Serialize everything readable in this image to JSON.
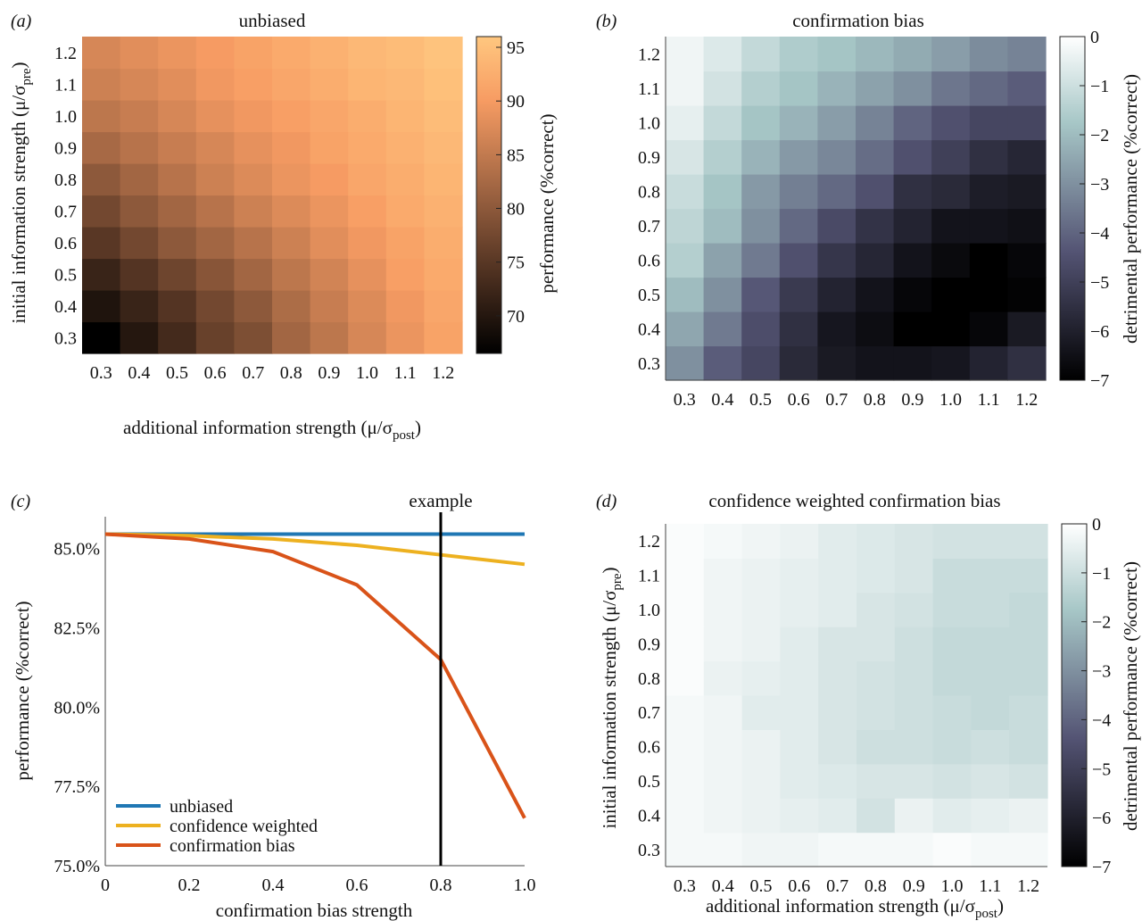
{
  "chart_data": [
    {
      "panel": "(a)",
      "type": "heatmap",
      "title": "unbiased",
      "xlabel": "additional information strength (μ/σ",
      "xlabel_sub": "post",
      "ylabel": "initial information strength (μ/σ",
      "ylabel_sub": "pre",
      "x": [
        0.3,
        0.4,
        0.5,
        0.6,
        0.7,
        0.8,
        0.9,
        1.0,
        1.1,
        1.2
      ],
      "y": [
        0.3,
        0.4,
        0.5,
        0.6,
        0.7,
        0.8,
        0.9,
        1.0,
        1.1,
        1.2
      ],
      "x_tick_labels": [
        "0.3",
        "0.4",
        "0.5",
        "0.6",
        "0.7",
        "0.8",
        "0.9",
        "1.0",
        "1.1",
        "1.2"
      ],
      "y_tick_labels": [
        "0.3",
        "0.4",
        "0.5",
        "0.6",
        "0.7",
        "0.8",
        "0.9",
        "1.0",
        "1.1",
        "1.2"
      ],
      "values": [
        [
          66.5,
          70.0,
          73.0,
          76.5,
          78.5,
          82.0,
          84.5,
          87.0,
          89.0,
          91.0
        ],
        [
          69.5,
          72.0,
          74.5,
          77.5,
          80.0,
          83.0,
          85.5,
          87.5,
          89.5,
          91.5
        ],
        [
          72.0,
          74.5,
          77.0,
          79.5,
          82.0,
          84.5,
          86.5,
          88.5,
          90.5,
          92.0
        ],
        [
          75.0,
          77.5,
          80.0,
          82.0,
          84.0,
          86.0,
          88.0,
          89.5,
          91.0,
          92.5
        ],
        [
          77.5,
          80.0,
          82.0,
          84.0,
          86.0,
          87.5,
          89.0,
          90.5,
          92.0,
          93.0
        ],
        [
          80.0,
          82.0,
          84.0,
          86.0,
          87.5,
          89.0,
          90.0,
          91.5,
          92.5,
          93.5
        ],
        [
          82.5,
          84.0,
          85.5,
          87.0,
          88.5,
          89.5,
          91.0,
          92.0,
          93.0,
          94.0
        ],
        [
          84.5,
          85.5,
          87.0,
          88.5,
          89.5,
          90.5,
          91.5,
          92.5,
          93.5,
          94.5
        ],
        [
          86.0,
          87.0,
          88.0,
          89.5,
          90.5,
          91.5,
          92.5,
          93.5,
          94.0,
          95.0
        ],
        [
          87.0,
          88.0,
          89.0,
          90.0,
          91.0,
          92.0,
          93.0,
          94.0,
          94.5,
          95.5
        ]
      ],
      "colorbar": {
        "label": "performance (%correct)",
        "range": [
          66.5,
          96
        ],
        "ticks": [
          70,
          75,
          80,
          85,
          90,
          95
        ],
        "tick_labels": [
          "70",
          "75",
          "80",
          "85",
          "90",
          "95"
        ],
        "colormap": "copper"
      }
    },
    {
      "panel": "(b)",
      "type": "heatmap",
      "title": "confirmation bias",
      "x": [
        0.3,
        0.4,
        0.5,
        0.6,
        0.7,
        0.8,
        0.9,
        1.0,
        1.1,
        1.2
      ],
      "y": [
        0.3,
        0.4,
        0.5,
        0.6,
        0.7,
        0.8,
        0.9,
        1.0,
        1.1,
        1.2
      ],
      "x_tick_labels": [
        "0.3",
        "0.4",
        "0.5",
        "0.6",
        "0.7",
        "0.8",
        "0.9",
        "1.0",
        "1.1",
        "1.2"
      ],
      "y_tick_labels": [
        "0.3",
        "0.4",
        "0.5",
        "0.6",
        "0.7",
        "0.8",
        "0.9",
        "1.0",
        "1.1",
        "1.2"
      ],
      "values": [
        [
          -3.0,
          -4.2,
          -4.8,
          -5.7,
          -6.2,
          -6.4,
          -6.4,
          -6.3,
          -5.9,
          -5.5
        ],
        [
          -2.5,
          -3.5,
          -4.6,
          -5.5,
          -6.3,
          -6.6,
          -7.0,
          -7.0,
          -6.8,
          -6.2
        ],
        [
          -2.0,
          -3.0,
          -4.3,
          -5.2,
          -5.9,
          -6.4,
          -6.8,
          -7.0,
          -7.0,
          -6.9
        ],
        [
          -1.5,
          -2.6,
          -3.5,
          -4.5,
          -5.3,
          -5.8,
          -6.4,
          -6.7,
          -7.0,
          -6.8
        ],
        [
          -1.3,
          -2.0,
          -3.0,
          -3.9,
          -4.7,
          -5.4,
          -5.9,
          -6.4,
          -6.4,
          -6.5
        ],
        [
          -1.1,
          -1.8,
          -2.8,
          -3.4,
          -3.9,
          -4.5,
          -5.5,
          -5.7,
          -6.1,
          -6.2
        ],
        [
          -0.8,
          -1.5,
          -2.2,
          -2.8,
          -3.2,
          -3.8,
          -4.5,
          -5.0,
          -5.5,
          -5.8
        ],
        [
          -0.5,
          -1.2,
          -1.8,
          -2.2,
          -2.7,
          -3.3,
          -4.0,
          -4.5,
          -4.8,
          -4.8
        ],
        [
          -0.3,
          -0.9,
          -1.5,
          -1.8,
          -2.2,
          -2.6,
          -3.0,
          -3.6,
          -3.9,
          -4.2
        ],
        [
          -0.3,
          -0.7,
          -1.2,
          -1.6,
          -1.8,
          -2.1,
          -2.4,
          -2.7,
          -3.1,
          -3.3
        ]
      ],
      "colorbar": {
        "label": "detrimental performance (%correct)",
        "range": [
          -7,
          0
        ],
        "ticks": [
          0,
          -1,
          -2,
          -3,
          -4,
          -5,
          -6,
          -7
        ],
        "tick_labels": [
          "0",
          "−1",
          "−2",
          "−3",
          "−4",
          "−5",
          "−6",
          "−7"
        ],
        "colormap": "bone"
      }
    },
    {
      "panel": "(c)",
      "type": "line",
      "xlabel": "confirmation bias strength",
      "ylabel": "performance (%correct)",
      "xlim": [
        0,
        1.0
      ],
      "ylim": [
        75.0,
        86.0
      ],
      "x_ticks": [
        0,
        0.2,
        0.4,
        0.6,
        0.8,
        1.0
      ],
      "x_tick_labels": [
        "0",
        "0.2",
        "0.4",
        "0.6",
        "0.8",
        "1.0"
      ],
      "y_ticks": [
        75.0,
        77.5,
        80.0,
        82.5,
        85.0
      ],
      "y_tick_labels": [
        "75.0%",
        "77.5%",
        "80.0%",
        "82.5%",
        "85.0%"
      ],
      "x": [
        0,
        0.2,
        0.4,
        0.6,
        0.8,
        1.0
      ],
      "series": [
        {
          "name": "unbiased",
          "color": "#1f77b4",
          "values": [
            85.45,
            85.45,
            85.45,
            85.45,
            85.45,
            85.45
          ]
        },
        {
          "name": "confidence weighted",
          "color": "#edb120",
          "values": [
            85.45,
            85.4,
            85.3,
            85.1,
            84.8,
            84.5
          ]
        },
        {
          "name": "confirmation bias",
          "color": "#d95319",
          "values": [
            85.45,
            85.3,
            84.9,
            83.85,
            81.5,
            76.5
          ]
        }
      ],
      "annotation": {
        "label": "example",
        "x": 0.8
      },
      "legend": "bottom-left"
    },
    {
      "panel": "(d)",
      "type": "heatmap",
      "title": "confidence weighted confirmation bias",
      "xlabel": "additional information strength (μ/σ",
      "xlabel_sub": "post",
      "ylabel": "initial information strength (μ/σ",
      "ylabel_sub": "pre",
      "x": [
        0.3,
        0.4,
        0.5,
        0.6,
        0.7,
        0.8,
        0.9,
        1.0,
        1.1,
        1.2
      ],
      "y": [
        0.3,
        0.4,
        0.5,
        0.6,
        0.7,
        0.8,
        0.9,
        1.0,
        1.1,
        1.2
      ],
      "x_tick_labels": [
        "0.3",
        "0.4",
        "0.5",
        "0.6",
        "0.7",
        "0.8",
        "0.9",
        "1.0",
        "1.1",
        "1.2"
      ],
      "y_tick_labels": [
        "0.3",
        "0.4",
        "0.5",
        "0.6",
        "0.7",
        "0.8",
        "0.9",
        "1.0",
        "1.1",
        "1.2"
      ],
      "values": [
        [
          -0.2,
          -0.2,
          -0.3,
          -0.3,
          -0.2,
          -0.2,
          -0.2,
          -0.1,
          -0.2,
          -0.2
        ],
        [
          -0.2,
          -0.3,
          -0.4,
          -0.5,
          -0.6,
          -0.9,
          -0.4,
          -0.6,
          -0.5,
          -0.4
        ],
        [
          -0.2,
          -0.3,
          -0.4,
          -0.6,
          -0.7,
          -0.8,
          -0.8,
          -0.9,
          -0.8,
          -0.9
        ],
        [
          -0.2,
          -0.3,
          -0.4,
          -0.6,
          -0.8,
          -1.0,
          -1.0,
          -1.1,
          -1.0,
          -1.1
        ],
        [
          -0.2,
          -0.3,
          -0.6,
          -0.6,
          -0.8,
          -0.9,
          -1.0,
          -1.1,
          -1.2,
          -1.1
        ],
        [
          -0.1,
          -0.4,
          -0.5,
          -0.6,
          -0.8,
          -0.9,
          -1.0,
          -1.2,
          -1.2,
          -1.2
        ],
        [
          -0.1,
          -0.3,
          -0.4,
          -0.6,
          -0.8,
          -0.8,
          -1.0,
          -1.2,
          -1.2,
          -1.2
        ],
        [
          -0.1,
          -0.3,
          -0.4,
          -0.5,
          -0.6,
          -0.8,
          -0.9,
          -1.1,
          -1.1,
          -1.2
        ],
        [
          -0.1,
          -0.3,
          -0.4,
          -0.5,
          -0.6,
          -0.7,
          -0.8,
          -1.1,
          -1.1,
          -1.1
        ],
        [
          -0.1,
          -0.2,
          -0.3,
          -0.4,
          -0.6,
          -0.7,
          -0.8,
          -0.9,
          -0.9,
          -0.9
        ]
      ],
      "colorbar": {
        "label": "detrimental performance (%correct)",
        "range": [
          -7,
          0
        ],
        "ticks": [
          0,
          -1,
          -2,
          -3,
          -4,
          -5,
          -6,
          -7
        ],
        "tick_labels": [
          "0",
          "−1",
          "−2",
          "−3",
          "−4",
          "−5",
          "−6",
          "−7"
        ],
        "colormap": "bone"
      }
    }
  ]
}
